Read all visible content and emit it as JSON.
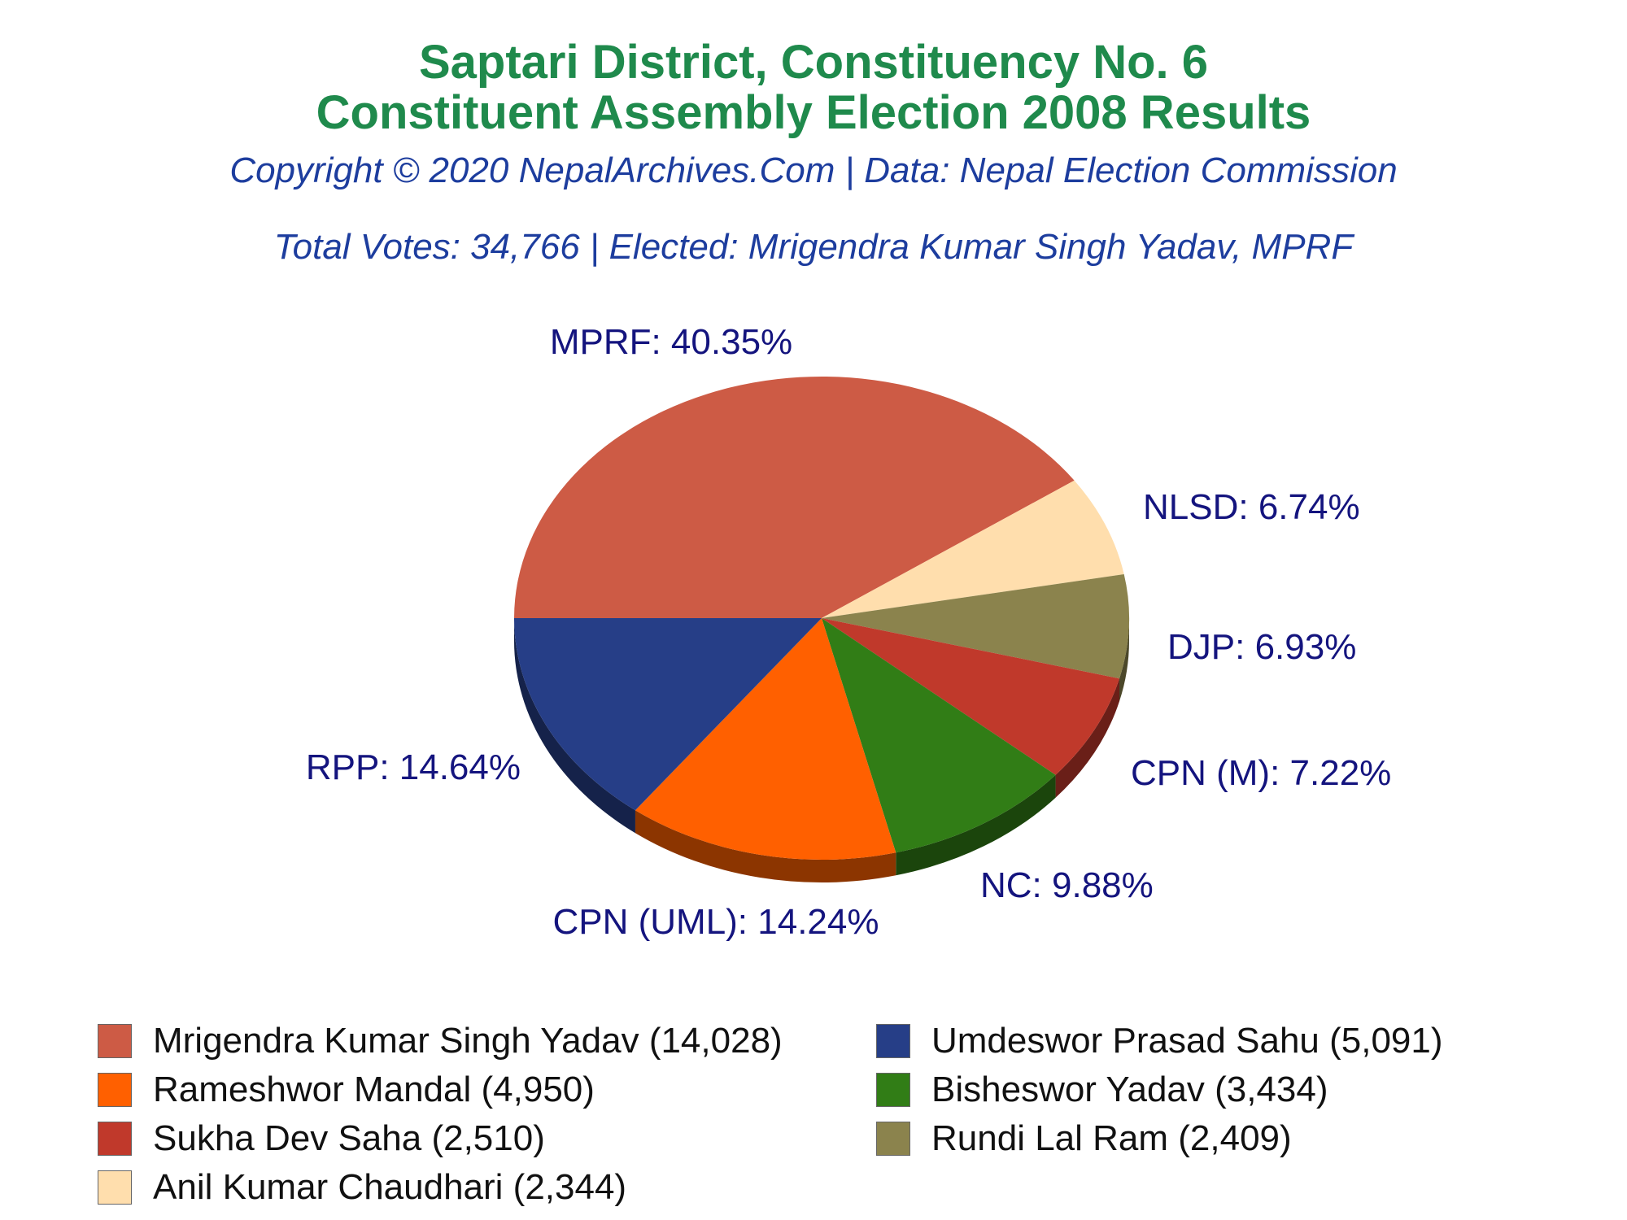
{
  "header": {
    "title_line1": "Saptari District, Constituency No. 6",
    "title_line2": "Constituent Assembly Election 2008 Results",
    "copyright": "Copyright © 2020 NepalArchives.Com | Data: Nepal Election Commission",
    "summary": "Total Votes: 34,766 | Elected: Mrigendra Kumar Singh Yadav, MPRF"
  },
  "chart_data": {
    "type": "pie",
    "slices": [
      {
        "party": "MPRF",
        "label": "MPRF: 40.35%",
        "percent": 40.35,
        "color": "#cd5b45"
      },
      {
        "party": "RPP",
        "label": "RPP: 14.64%",
        "percent": 14.64,
        "color": "#263e87"
      },
      {
        "party": "CPN (UML)",
        "label": "CPN (UML): 14.24%",
        "percent": 14.24,
        "color": "#ff6000"
      },
      {
        "party": "NC",
        "label": "NC: 9.88%",
        "percent": 9.88,
        "color": "#317d16"
      },
      {
        "party": "CPN (M)",
        "label": "CPN (M): 7.22%",
        "percent": 7.22,
        "color": "#c0392b"
      },
      {
        "party": "DJP",
        "label": "DJP: 6.93%",
        "percent": 6.93,
        "color": "#8b834d"
      },
      {
        "party": "NLSD",
        "label": "NLSD: 6.74%",
        "percent": 6.74,
        "color": "#ffdead"
      }
    ],
    "legend": [
      {
        "text": "Mrigendra Kumar Singh Yadav (14,028)",
        "color": "#cd5b45"
      },
      {
        "text": "Umdeswor Prasad Sahu (5,091)",
        "color": "#263e87"
      },
      {
        "text": "Rameshwor Mandal (4,950)",
        "color": "#ff6000"
      },
      {
        "text": "Bisheswor Yadav (3,434)",
        "color": "#317d16"
      },
      {
        "text": "Sukha Dev Saha (2,510)",
        "color": "#c0392b"
      },
      {
        "text": "Rundi Lal Ram (2,409)",
        "color": "#8b834d"
      },
      {
        "text": "Anil Kumar Chaudhari (2,344)",
        "color": "#ffdead"
      }
    ],
    "legend_placement": "bottom"
  }
}
